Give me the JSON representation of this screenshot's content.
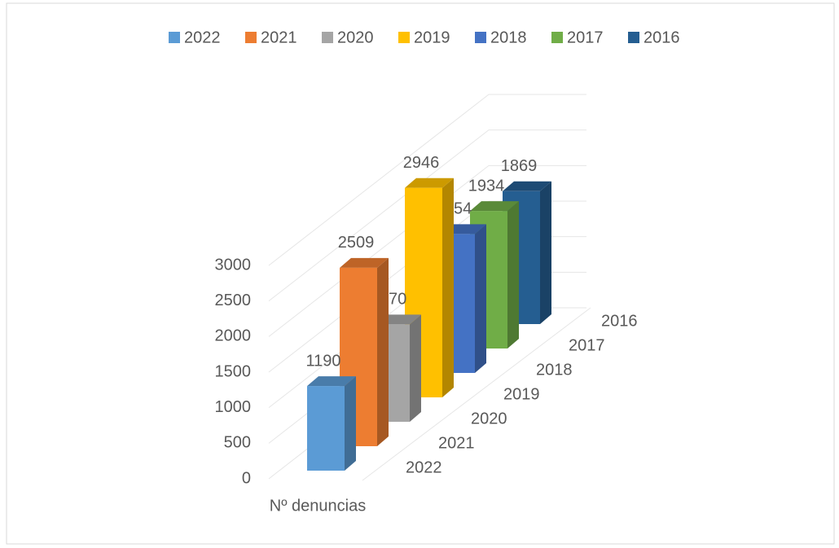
{
  "chart_data": {
    "type": "bar3d",
    "categories": [
      "Nº denuncias"
    ],
    "series": [
      {
        "name": "2022",
        "color": "#5b9bd5",
        "values": [
          1190
        ]
      },
      {
        "name": "2021",
        "color": "#ed7d31",
        "values": [
          2509
        ]
      },
      {
        "name": "2020",
        "color": "#a5a5a5",
        "values": [
          1370
        ]
      },
      {
        "name": "2019",
        "color": "#ffc000",
        "values": [
          2946
        ]
      },
      {
        "name": "2018",
        "color": "#4472c4",
        "values": [
          1954
        ]
      },
      {
        "name": "2017",
        "color": "#70ad47",
        "values": [
          1934
        ]
      },
      {
        "name": "2016",
        "color": "#255e91",
        "values": [
          1869
        ]
      }
    ],
    "ylim": [
      0,
      3000
    ],
    "yticks": [
      0,
      500,
      1000,
      1500,
      2000,
      2500,
      3000
    ],
    "grid": true,
    "legend": "top"
  }
}
